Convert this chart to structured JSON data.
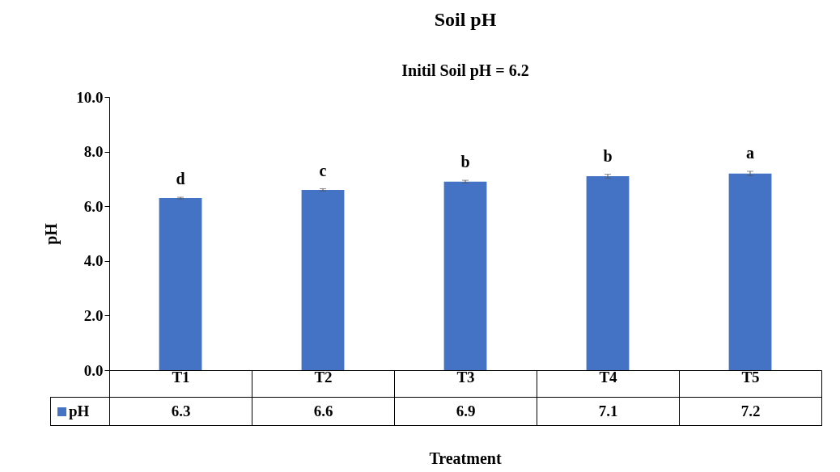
{
  "chart_data": {
    "type": "bar",
    "title": "Soil pH",
    "subtitle": "Initil Soil pH = 6.2",
    "xlabel": "Treatment",
    "ylabel": "pH",
    "categories": [
      "T1",
      "T2",
      "T3",
      "T4",
      "T5"
    ],
    "series": [
      {
        "name": "pH",
        "color": "#4472c4",
        "values": [
          6.3,
          6.6,
          6.9,
          7.1,
          7.2
        ],
        "errors": [
          0.03,
          0.04,
          0.05,
          0.07,
          0.08
        ]
      }
    ],
    "ylim": [
      0,
      10
    ],
    "yticks": [
      {
        "value": 0,
        "label": "0.0"
      },
      {
        "value": 2,
        "label": "2.0"
      },
      {
        "value": 4,
        "label": "4.0"
      },
      {
        "value": 6,
        "label": "6.0"
      },
      {
        "value": 8,
        "label": "8.0"
      },
      {
        "value": 10,
        "label": "10.0"
      }
    ],
    "annotations": [
      "d",
      "c",
      "b",
      "b",
      "a"
    ],
    "data_labels": true,
    "legend": "bottom left",
    "grid": false
  }
}
